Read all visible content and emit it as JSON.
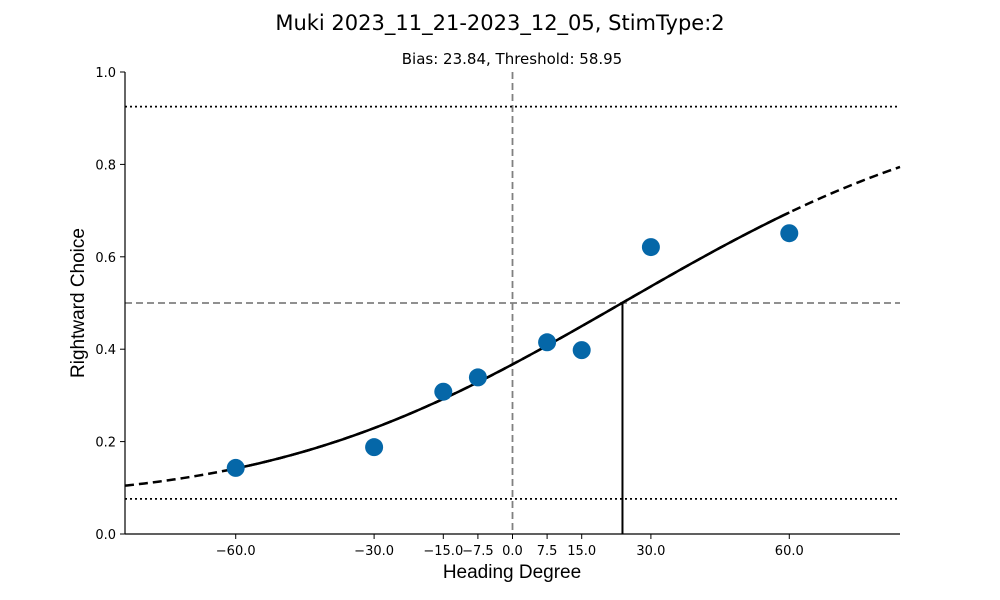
{
  "chart_data": {
    "type": "scatter",
    "title": "Muki 2023_11_21-2023_12_05, StimType:2",
    "subtitle": "Bias: 23.84, Threshold: 58.95",
    "xlabel": "Heading Degree",
    "ylabel": "Rightward Choice",
    "xlim": [
      -84,
      84
    ],
    "ylim": [
      0,
      1
    ],
    "x_ticks": [
      -60,
      -30,
      -15,
      -7.5,
      0,
      7.5,
      15,
      30,
      60
    ],
    "x_tick_labels": [
      "−60.0",
      "−30.0",
      "−15.0",
      "−7.5",
      "0.0",
      "7.5",
      "15.0",
      "30.0",
      "60.0"
    ],
    "y_ticks": [
      0,
      0.2,
      0.4,
      0.6,
      0.8,
      1.0
    ],
    "y_tick_labels": [
      "0.0",
      "0.2",
      "0.4",
      "0.6",
      "0.8",
      "1.0"
    ],
    "grid": false,
    "marker_color": "#0567a8",
    "points": {
      "x": [
        -60,
        -30,
        -15,
        -7.5,
        7.5,
        15,
        30,
        60
      ],
      "y": [
        0.143,
        0.188,
        0.308,
        0.339,
        0.415,
        0.398,
        0.621,
        0.651
      ]
    },
    "fit": {
      "model": "cumulative_gaussian",
      "bias": 23.84,
      "threshold": 58.95,
      "guess_rate": 0.076,
      "lapse_upper": 0.925,
      "solid_range": [
        -60,
        60
      ],
      "dashed_range": [
        -84,
        84
      ]
    },
    "reference_lines": {
      "vertical_dashed_x": 0,
      "horizontal_dashed_y": 0.5,
      "dotted_y": [
        0.076,
        0.925
      ],
      "bias_marker_x": 23.84
    }
  }
}
